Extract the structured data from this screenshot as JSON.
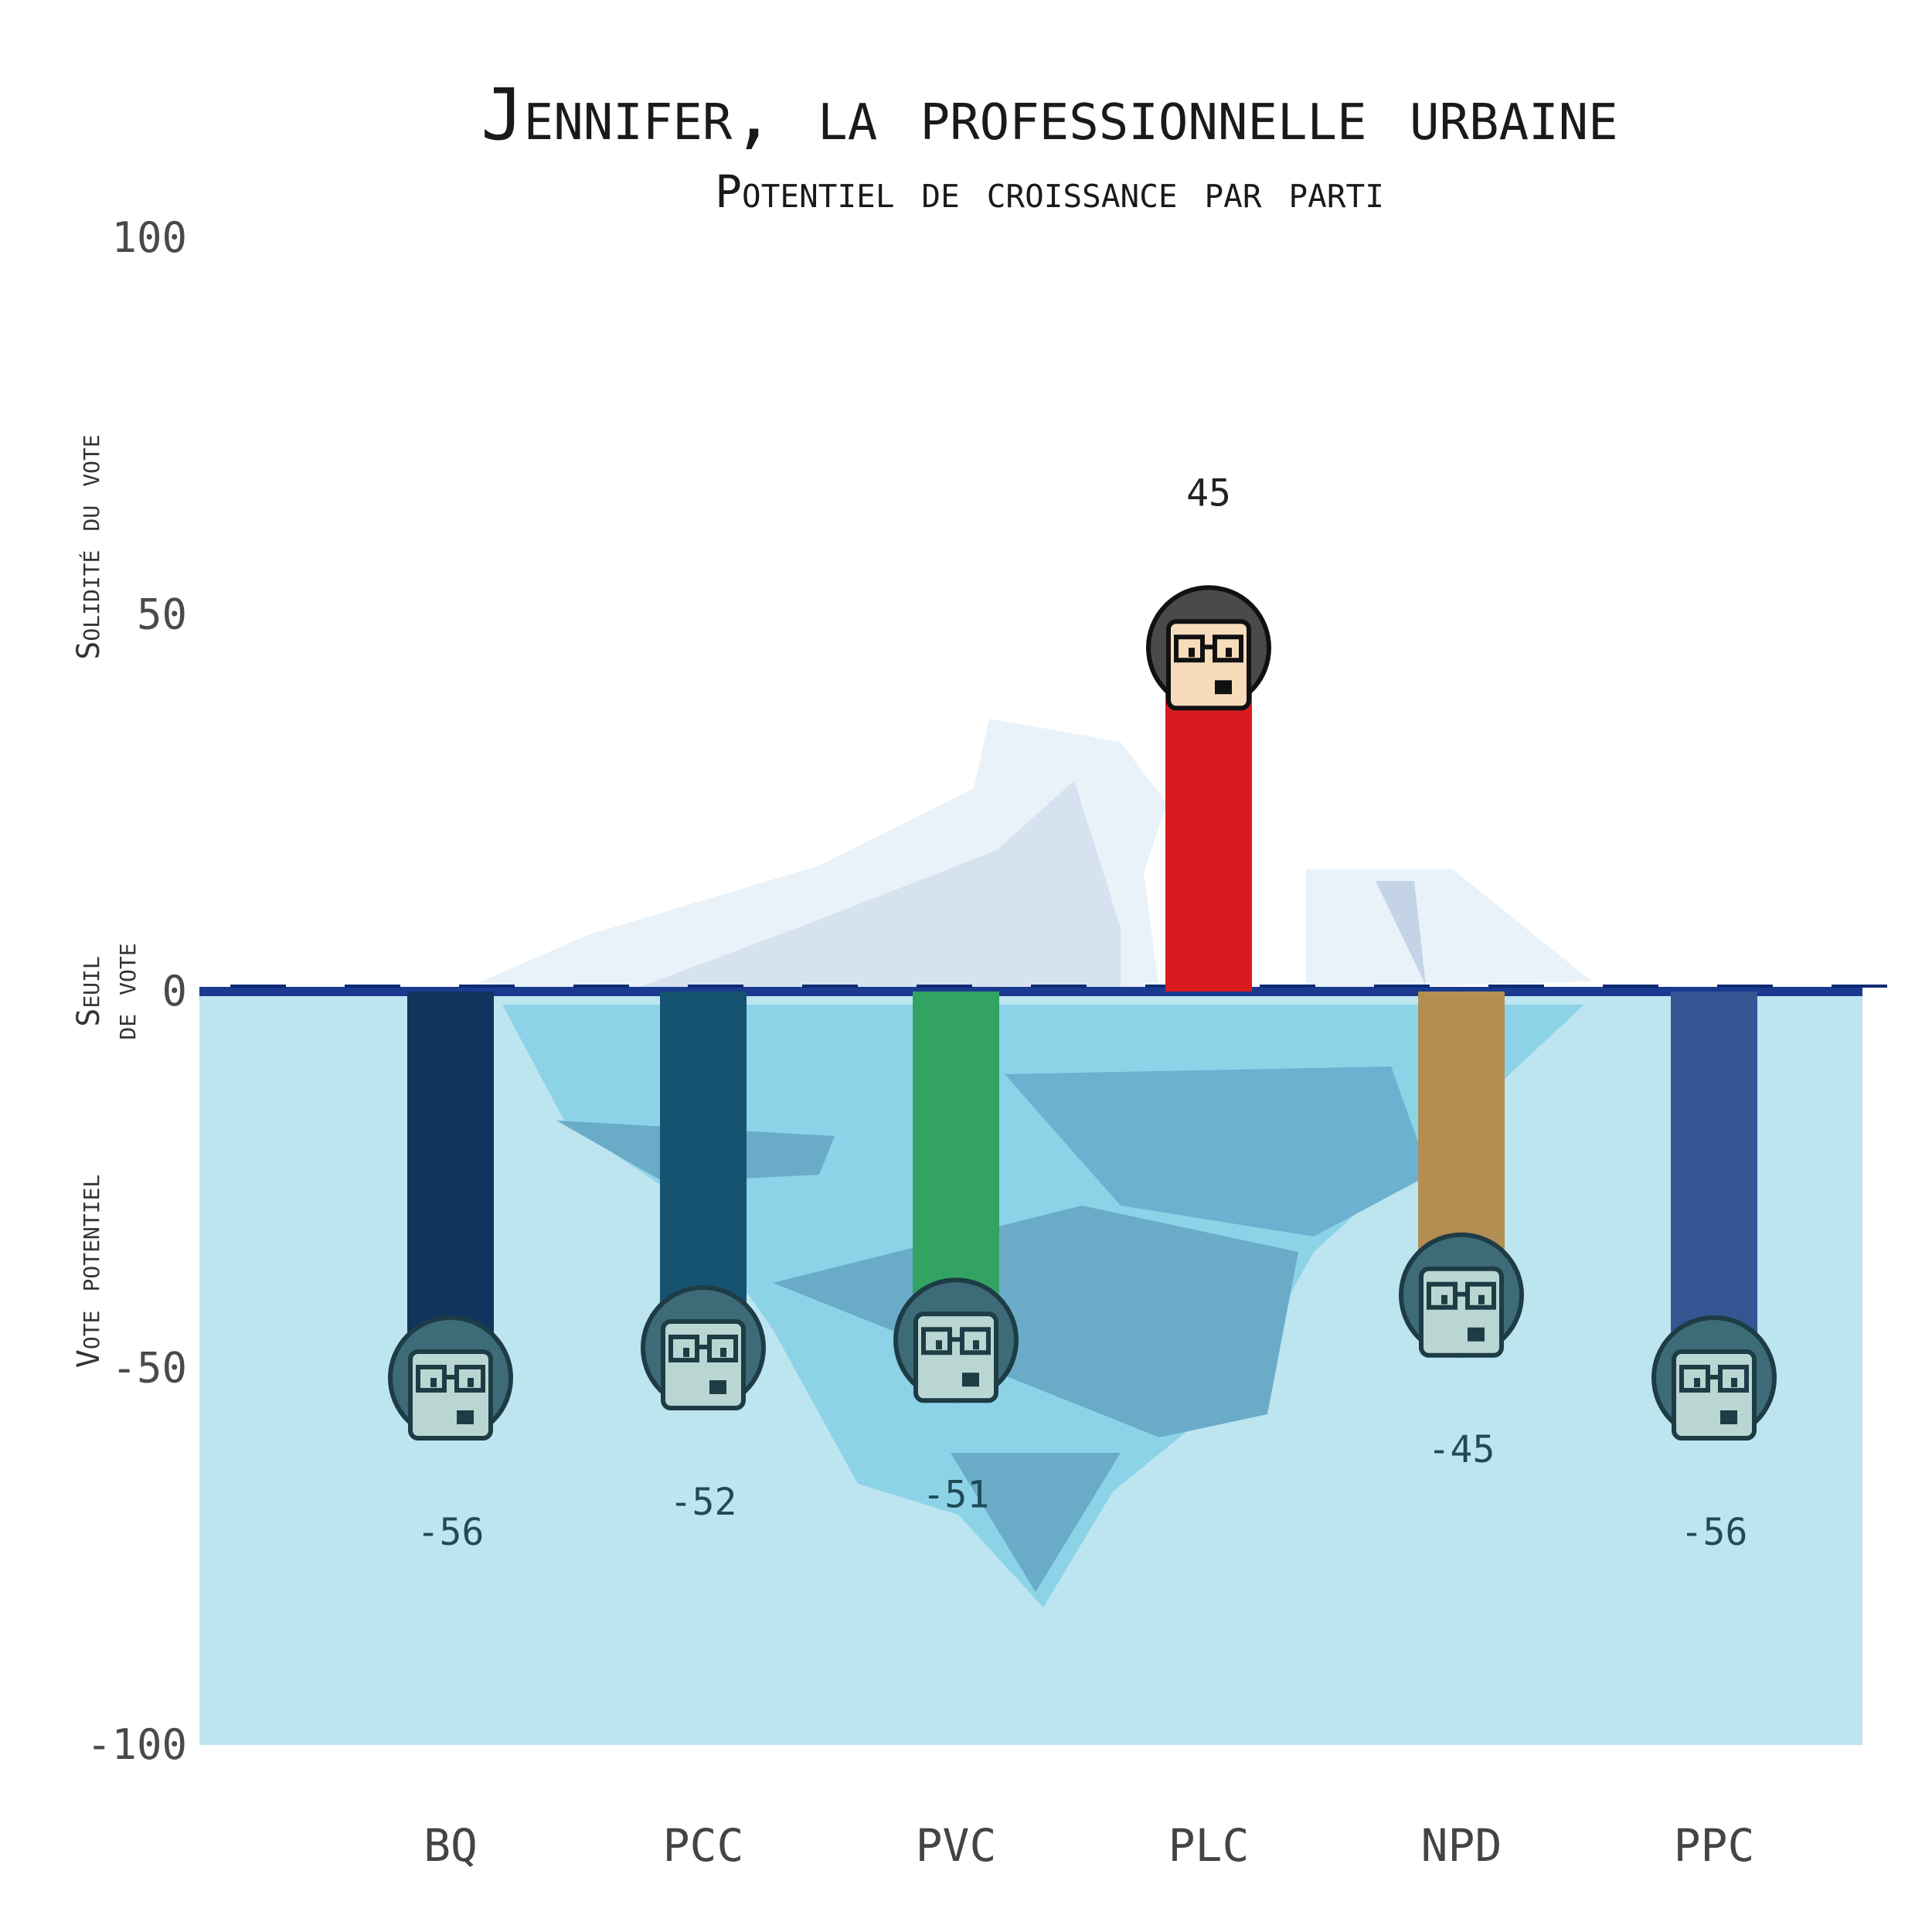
{
  "title": "Jennifer, la professionnelle urbaine",
  "subtitle": "Potentiel de croissance par parti",
  "chart_data": {
    "type": "bar",
    "title": "Jennifer, la professionnelle urbaine",
    "subtitle": "Potentiel de croissance par parti",
    "ylabel_upper": "Solidité du vote",
    "ylabel_middle_line1": "Seuil",
    "ylabel_middle_line2": "de vote",
    "ylabel_lower": "Vote potentiel",
    "ylim": [
      -100,
      100
    ],
    "yticks": [
      100,
      50,
      0,
      -50,
      -100
    ],
    "ytick_labels": [
      "100",
      "50",
      "0",
      "-50",
      "-100"
    ],
    "categories": [
      "BQ",
      "PCC",
      "PVC",
      "PLC",
      "NPD",
      "PPC"
    ],
    "values": [
      -56,
      -52,
      -51,
      45,
      -45,
      -56
    ],
    "value_labels": [
      "-56",
      "-52",
      "-51",
      "45",
      "-45",
      "-56"
    ],
    "colors": [
      "#10345e",
      "#165371",
      "#33a363",
      "#d91b20",
      "#b38e52",
      "#355592"
    ],
    "threshold_line_color": "#1a3a8f",
    "water_color": "#bde5f0",
    "grid": false,
    "legend": "none"
  }
}
